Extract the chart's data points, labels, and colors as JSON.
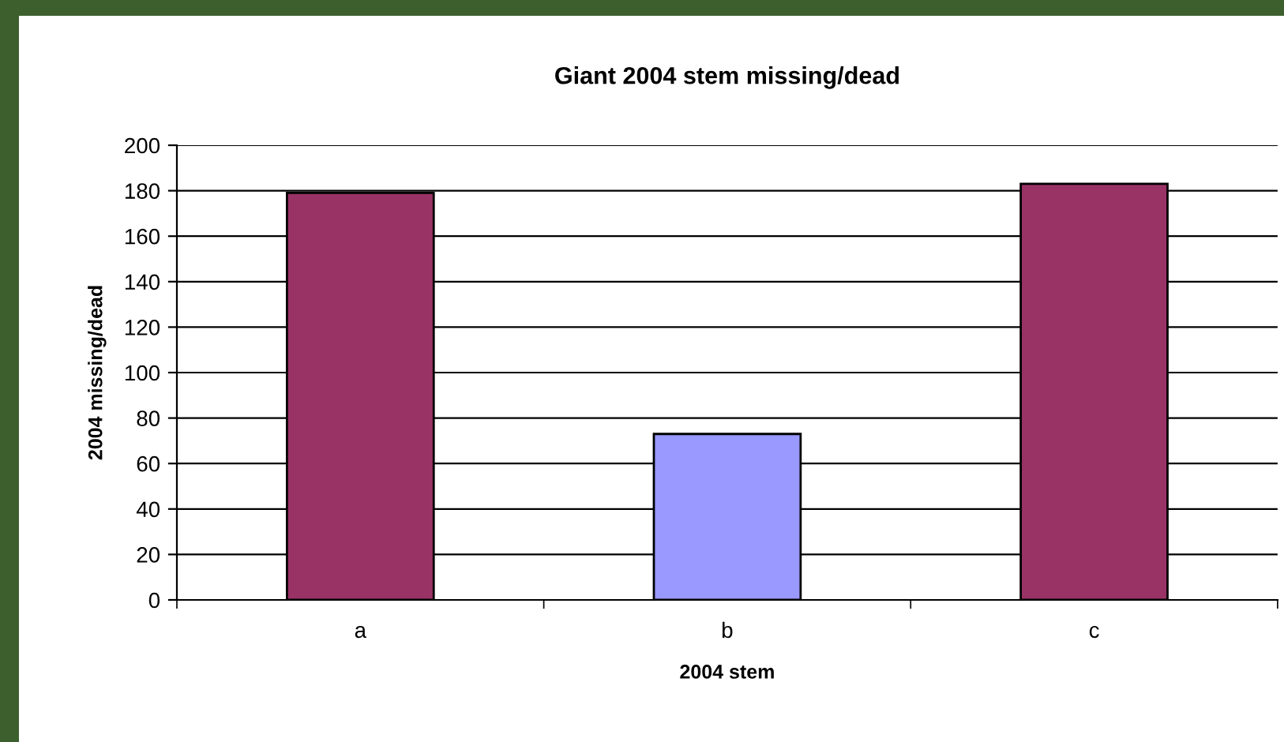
{
  "chart_data": {
    "type": "bar",
    "title": "Giant 2004 stem missing/dead",
    "xlabel": "2004 stem",
    "ylabel": "2004 missing/dead",
    "categories": [
      "a",
      "b",
      "c"
    ],
    "values": [
      179,
      73,
      183
    ],
    "colors": [
      "#993366",
      "#9999ff",
      "#993366"
    ],
    "ylim": [
      0,
      200
    ],
    "yticks": [
      0,
      20,
      40,
      60,
      80,
      100,
      120,
      140,
      160,
      180,
      200
    ],
    "grid": "y"
  }
}
